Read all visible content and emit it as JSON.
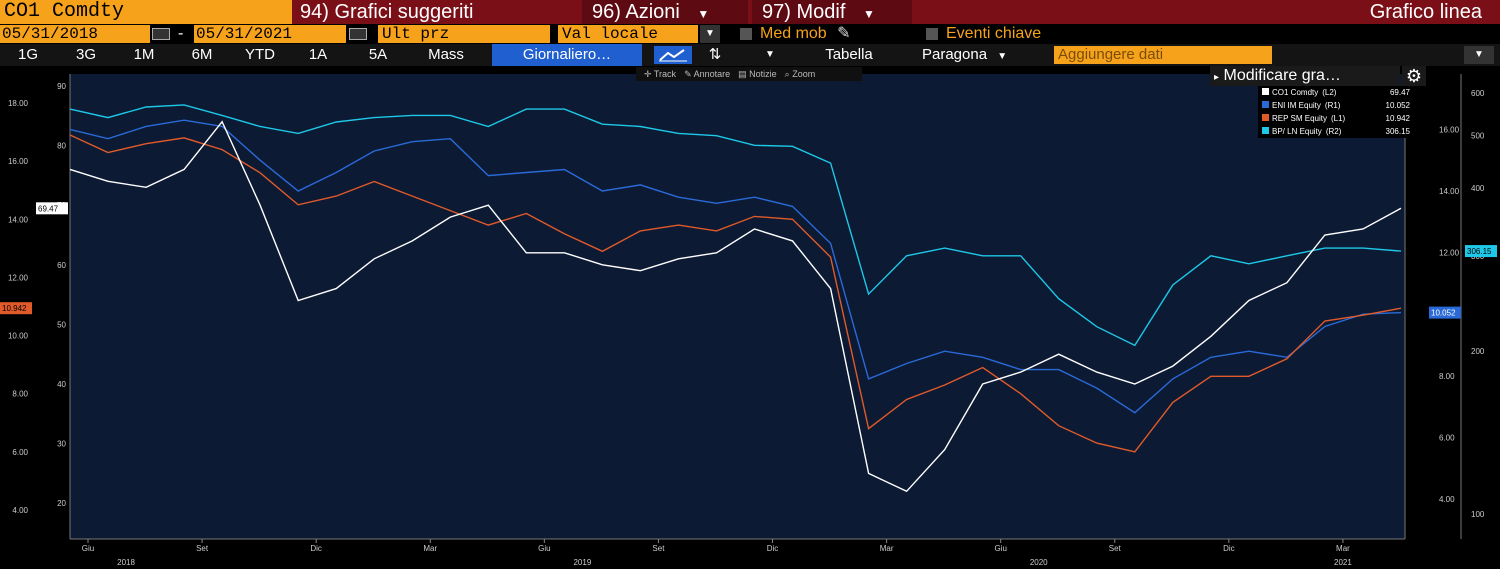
{
  "header": {
    "ticker": "CO1 Comdty",
    "suggested": "94) Grafici suggeriti",
    "actions": "96) Azioni",
    "modify": "97) Modif",
    "chart_type": "Grafico linea",
    "accent": "#7a0f18",
    "field_color": "#f7a21b"
  },
  "range": {
    "start": "05/31/2018",
    "sep": "-",
    "end": "05/31/2021",
    "price_field": "Ult prz",
    "currency": "Val locale",
    "moving_avg": "Med mob",
    "key_events": "Eventi chiave"
  },
  "periods": [
    "1G",
    "3G",
    "1M",
    "6M",
    "YTD",
    "1A",
    "5A",
    "Mass"
  ],
  "toolbar": {
    "frequency": "Giornaliero…",
    "table": "Tabella",
    "compare": "Paragona",
    "add_data": "Aggiungere dati",
    "edit_chart": "Modificare gra…"
  },
  "tools": [
    "Track",
    "Annotare",
    "Notizie",
    "Zoom"
  ],
  "chart_data": {
    "type": "line",
    "x_ticks": [
      "Giu",
      "Set",
      "Dic",
      "Mar",
      "Giu",
      "Set",
      "Dic",
      "Mar",
      "Giu",
      "Set",
      "Dic",
      "Mar"
    ],
    "x_years": [
      "2018",
      "2019",
      "2020",
      "2021"
    ],
    "axis_l1": {
      "ticks": [
        "90",
        "80",
        "70",
        "60",
        "50",
        "40",
        "30",
        "20"
      ],
      "range": [
        14,
        92
      ]
    },
    "axis_l2": {
      "ticks": [
        "18.00",
        "16.00",
        "14.00",
        "12.00",
        "10.00",
        "8.00",
        "6.00",
        "4.00"
      ],
      "range": [
        3,
        19
      ]
    },
    "axis_r1": {
      "ticks": [
        "16.00",
        "14.00",
        "12.00",
        "10.00",
        "8.00",
        "6.00",
        "4.00"
      ],
      "range": [
        2.7,
        17.8
      ]
    },
    "axis_r2": {
      "ticks": [
        "600",
        "500",
        "400",
        "300",
        "200",
        "100"
      ],
      "range": [
        90,
        650
      ],
      "log": true
    },
    "x": [
      "2018-06",
      "2018-07",
      "2018-08",
      "2018-09",
      "2018-10",
      "2018-11",
      "2018-12",
      "2019-01",
      "2019-02",
      "2019-03",
      "2019-04",
      "2019-05",
      "2019-06",
      "2019-07",
      "2019-08",
      "2019-09",
      "2019-10",
      "2019-11",
      "2019-12",
      "2020-01",
      "2020-02",
      "2020-03",
      "2020-04",
      "2020-05",
      "2020-06",
      "2020-07",
      "2020-08",
      "2020-09",
      "2020-10",
      "2020-11",
      "2020-12",
      "2021-01",
      "2021-02",
      "2021-03",
      "2021-04",
      "2021-05"
    ],
    "series": [
      {
        "name": "CO1 Comdty",
        "axis": "L1",
        "color": "#ffffff",
        "last": "69.47",
        "values": [
          76,
          74,
          73,
          76,
          84,
          70,
          54,
          56,
          61,
          64,
          68,
          70,
          62,
          62,
          60,
          59,
          61,
          62,
          66,
          64,
          56,
          25,
          22,
          29,
          40,
          42,
          45,
          42,
          40,
          43,
          48,
          54,
          57,
          65,
          66,
          69.47
        ]
      },
      {
        "name": "ENI IM Equity",
        "axis": "R1",
        "color": "#2a6ad8",
        "last": "10.052",
        "values": [
          16.0,
          15.7,
          16.1,
          16.3,
          16.1,
          15.0,
          14.0,
          14.6,
          15.3,
          15.6,
          15.7,
          14.5,
          14.6,
          14.7,
          14.0,
          14.2,
          13.8,
          13.6,
          13.8,
          13.5,
          12.3,
          7.9,
          8.4,
          8.8,
          8.6,
          8.2,
          8.2,
          7.6,
          6.8,
          7.9,
          8.6,
          8.8,
          8.6,
          9.6,
          10.0,
          10.052
        ]
      },
      {
        "name": "REP SM Equity",
        "axis": "L2",
        "color": "#e05a2a",
        "last": "10.942",
        "values": [
          16.9,
          16.3,
          16.6,
          16.8,
          16.4,
          15.6,
          14.5,
          14.8,
          15.3,
          14.8,
          14.3,
          13.8,
          14.2,
          13.5,
          12.9,
          13.6,
          13.8,
          13.6,
          14.1,
          14.0,
          12.7,
          6.8,
          7.8,
          8.3,
          8.9,
          8.0,
          6.9,
          6.3,
          6.0,
          7.7,
          8.6,
          8.6,
          9.2,
          10.5,
          10.7,
          10.942
        ]
      },
      {
        "name": "BP/ LN Equity",
        "axis": "R2",
        "color": "#1ec8e8",
        "last": "306.15",
        "values": [
          560,
          540,
          565,
          570,
          545,
          520,
          505,
          530,
          540,
          545,
          545,
          520,
          560,
          560,
          525,
          520,
          505,
          500,
          480,
          478,
          445,
          255,
          300,
          310,
          300,
          300,
          250,
          222,
          205,
          265,
          300,
          290,
          300,
          310,
          310,
          306.15
        ]
      }
    ],
    "legend_position": "top-right",
    "area_fill": "#0c1a33"
  }
}
